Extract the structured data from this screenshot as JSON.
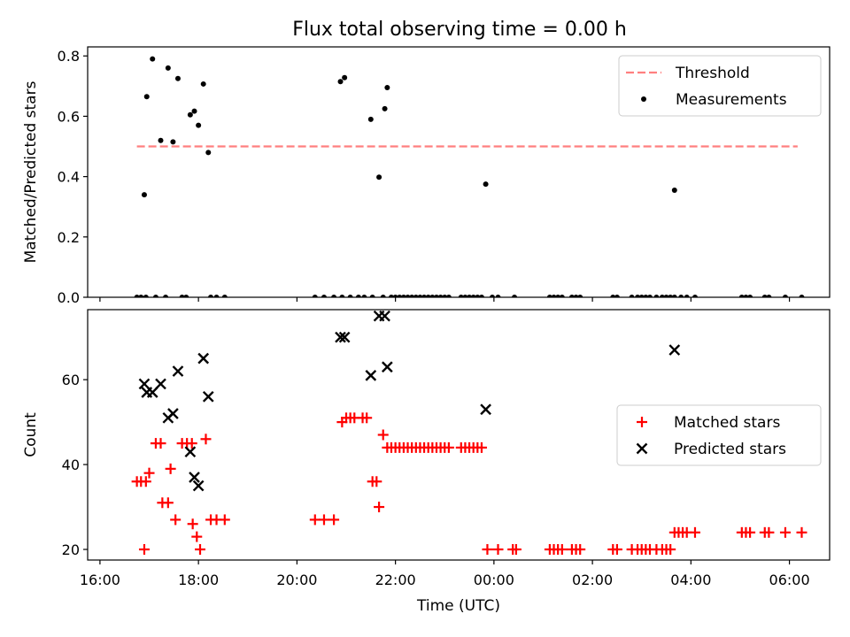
{
  "figure": {
    "title": "Flux total observing time = 0.00 h",
    "xlabel": "Time (UTC)",
    "x_ticks": [
      "16:00",
      "18:00",
      "20:00",
      "22:00",
      "00:00",
      "02:00",
      "04:00",
      "06:00"
    ]
  },
  "chart_data": [
    {
      "type": "scatter",
      "ylabel": "Matched/Predicted stars",
      "ylim": [
        0,
        0.83
      ],
      "y_ticks": [
        "0.0",
        "0.2",
        "0.4",
        "0.6",
        "0.8"
      ],
      "legend_position": "top-right",
      "threshold": {
        "name": "Threshold",
        "value": 0.5,
        "x_range": [
          "16:45",
          "06:10"
        ],
        "color": "#ff7f7f",
        "style": "dashed"
      },
      "series": [
        {
          "name": "Measurements",
          "color": "#000000",
          "points": [
            [
              "16:45",
              0
            ],
            [
              "16:50",
              0
            ],
            [
              "16:56",
              0
            ],
            [
              "17:08",
              0
            ],
            [
              "17:20",
              0
            ],
            [
              "17:40",
              0
            ],
            [
              "17:45",
              0
            ],
            [
              "18:15",
              0
            ],
            [
              "18:22",
              0
            ],
            [
              "18:32",
              0
            ],
            [
              "20:22",
              0
            ],
            [
              "20:33",
              0
            ],
            [
              "20:45",
              0
            ],
            [
              "20:55",
              0
            ],
            [
              "21:05",
              0
            ],
            [
              "21:15",
              0
            ],
            [
              "21:22",
              0
            ],
            [
              "21:32",
              0
            ],
            [
              "21:45",
              0
            ],
            [
              "21:55",
              0
            ],
            [
              "22:00",
              0
            ],
            [
              "22:05",
              0
            ],
            [
              "22:10",
              0
            ],
            [
              "22:15",
              0
            ],
            [
              "22:20",
              0
            ],
            [
              "22:25",
              0
            ],
            [
              "22:30",
              0
            ],
            [
              "22:35",
              0
            ],
            [
              "22:40",
              0
            ],
            [
              "22:45",
              0
            ],
            [
              "22:50",
              0
            ],
            [
              "22:55",
              0
            ],
            [
              "23:00",
              0
            ],
            [
              "23:05",
              0
            ],
            [
              "23:20",
              0
            ],
            [
              "23:25",
              0
            ],
            [
              "23:30",
              0
            ],
            [
              "23:35",
              0
            ],
            [
              "23:40",
              0
            ],
            [
              "23:45",
              0
            ],
            [
              "23:58",
              0
            ],
            [
              "00:05",
              0
            ],
            [
              "00:25",
              0
            ],
            [
              "01:08",
              0
            ],
            [
              "01:13",
              0
            ],
            [
              "01:18",
              0
            ],
            [
              "01:23",
              0
            ],
            [
              "01:35",
              0
            ],
            [
              "01:40",
              0
            ],
            [
              "01:45",
              0
            ],
            [
              "02:25",
              0
            ],
            [
              "02:30",
              0
            ],
            [
              "02:48",
              0
            ],
            [
              "02:55",
              0
            ],
            [
              "03:00",
              0
            ],
            [
              "03:05",
              0
            ],
            [
              "03:10",
              0
            ],
            [
              "03:18",
              0
            ],
            [
              "03:25",
              0
            ],
            [
              "03:30",
              0
            ],
            [
              "03:35",
              0
            ],
            [
              "03:40",
              0
            ],
            [
              "03:48",
              0
            ],
            [
              "03:55",
              0
            ],
            [
              "04:05",
              0
            ],
            [
              "05:02",
              0
            ],
            [
              "05:07",
              0
            ],
            [
              "05:12",
              0
            ],
            [
              "05:30",
              0
            ],
            [
              "05:35",
              0
            ],
            [
              "05:55",
              0
            ],
            [
              "06:15",
              0
            ],
            [
              "16:54",
              0.34
            ],
            [
              "16:57",
              0.665
            ],
            [
              "17:04",
              0.79
            ],
            [
              "17:14",
              0.52
            ],
            [
              "17:23",
              0.76
            ],
            [
              "17:29",
              0.515
            ],
            [
              "17:35",
              0.725
            ],
            [
              "17:50",
              0.605
            ],
            [
              "17:55",
              0.617
            ],
            [
              "18:00",
              0.57
            ],
            [
              "18:06",
              0.707
            ],
            [
              "18:12",
              0.48
            ],
            [
              "20:53",
              0.715
            ],
            [
              "20:58",
              0.728
            ],
            [
              "21:30",
              0.59
            ],
            [
              "21:40",
              0.398
            ],
            [
              "21:47",
              0.625
            ],
            [
              "21:50",
              0.695
            ],
            [
              "23:50",
              0.375
            ],
            [
              "03:40",
              0.355
            ]
          ]
        }
      ]
    },
    {
      "type": "scatter",
      "ylabel": "Count",
      "ylim": [
        17.5,
        76.5
      ],
      "y_ticks": [
        "20",
        "40",
        "60"
      ],
      "legend_position": "center-right",
      "series": [
        {
          "name": "Matched stars",
          "color": "#ff0000",
          "marker": "+",
          "points": [
            [
              "16:45",
              36
            ],
            [
              "16:50",
              36
            ],
            [
              "16:56",
              36
            ],
            [
              "16:54",
              20
            ],
            [
              "17:00",
              38
            ],
            [
              "17:08",
              45
            ],
            [
              "17:14",
              45
            ],
            [
              "17:16",
              31
            ],
            [
              "17:23",
              31
            ],
            [
              "17:26",
              39
            ],
            [
              "17:32",
              27
            ],
            [
              "17:40",
              45
            ],
            [
              "17:46",
              45
            ],
            [
              "17:52",
              45
            ],
            [
              "17:53",
              26
            ],
            [
              "17:58",
              23
            ],
            [
              "18:02",
              20
            ],
            [
              "18:09",
              46
            ],
            [
              "18:15",
              27
            ],
            [
              "18:22",
              27
            ],
            [
              "18:32",
              27
            ],
            [
              "20:22",
              27
            ],
            [
              "20:33",
              27
            ],
            [
              "20:45",
              27
            ],
            [
              "20:55",
              50
            ],
            [
              "21:00",
              51
            ],
            [
              "21:05",
              51
            ],
            [
              "21:10",
              51
            ],
            [
              "21:20",
              51
            ],
            [
              "21:25",
              51
            ],
            [
              "21:32",
              36
            ],
            [
              "21:37",
              36
            ],
            [
              "21:40",
              30
            ],
            [
              "21:45",
              47
            ],
            [
              "21:50",
              44
            ],
            [
              "21:55",
              44
            ],
            [
              "22:00",
              44
            ],
            [
              "22:05",
              44
            ],
            [
              "22:10",
              44
            ],
            [
              "22:15",
              44
            ],
            [
              "22:20",
              44
            ],
            [
              "22:25",
              44
            ],
            [
              "22:30",
              44
            ],
            [
              "22:35",
              44
            ],
            [
              "22:40",
              44
            ],
            [
              "22:45",
              44
            ],
            [
              "22:50",
              44
            ],
            [
              "22:55",
              44
            ],
            [
              "23:00",
              44
            ],
            [
              "23:05",
              44
            ],
            [
              "23:20",
              44
            ],
            [
              "23:25",
              44
            ],
            [
              "23:30",
              44
            ],
            [
              "23:35",
              44
            ],
            [
              "23:40",
              44
            ],
            [
              "23:45",
              44
            ],
            [
              "23:52",
              20
            ],
            [
              "00:05",
              20
            ],
            [
              "00:23",
              20
            ],
            [
              "00:27",
              20
            ],
            [
              "01:08",
              20
            ],
            [
              "01:13",
              20
            ],
            [
              "01:18",
              20
            ],
            [
              "01:23",
              20
            ],
            [
              "01:35",
              20
            ],
            [
              "01:40",
              20
            ],
            [
              "01:45",
              20
            ],
            [
              "02:25",
              20
            ],
            [
              "02:30",
              20
            ],
            [
              "02:48",
              20
            ],
            [
              "02:55",
              20
            ],
            [
              "03:00",
              20
            ],
            [
              "03:05",
              20
            ],
            [
              "03:10",
              20
            ],
            [
              "03:18",
              20
            ],
            [
              "03:25",
              20
            ],
            [
              "03:30",
              20
            ],
            [
              "03:35",
              20
            ],
            [
              "03:40",
              24
            ],
            [
              "03:45",
              24
            ],
            [
              "03:50",
              24
            ],
            [
              "03:55",
              24
            ],
            [
              "04:05",
              24
            ],
            [
              "05:02",
              24
            ],
            [
              "05:07",
              24
            ],
            [
              "05:12",
              24
            ],
            [
              "05:30",
              24
            ],
            [
              "05:35",
              24
            ],
            [
              "05:55",
              24
            ],
            [
              "06:15",
              24
            ]
          ]
        },
        {
          "name": "Predicted stars",
          "color": "#000000",
          "marker": "x",
          "points": [
            [
              "16:54",
              59
            ],
            [
              "16:57",
              57
            ],
            [
              "17:04",
              57
            ],
            [
              "17:14",
              59
            ],
            [
              "17:23",
              51
            ],
            [
              "17:29",
              52
            ],
            [
              "17:35",
              62
            ],
            [
              "17:50",
              43
            ],
            [
              "17:55",
              37
            ],
            [
              "18:00",
              35
            ],
            [
              "18:06",
              65
            ],
            [
              "18:12",
              56
            ],
            [
              "20:53",
              70
            ],
            [
              "20:58",
              70
            ],
            [
              "21:30",
              61
            ],
            [
              "21:40",
              75
            ],
            [
              "21:47",
              75
            ],
            [
              "21:50",
              63
            ],
            [
              "23:50",
              53
            ],
            [
              "03:40",
              67
            ]
          ]
        }
      ]
    }
  ]
}
